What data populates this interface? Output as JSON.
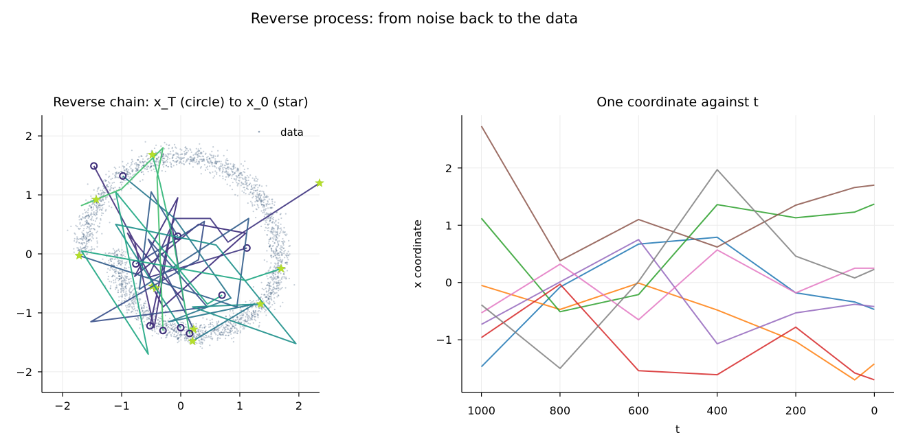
{
  "figure": {
    "suptitle": "Reverse process: from noise back to the data"
  },
  "chart_data": [
    {
      "type": "scatter",
      "title": "Reverse chain: x_T (circle) to x_0 (star)",
      "xlabel": "",
      "ylabel": "",
      "xlim": [
        -2.35,
        2.35
      ],
      "ylim": [
        -2.35,
        2.35
      ],
      "xticks": [
        -2,
        -1,
        0,
        1,
        2
      ],
      "yticks": [
        -2,
        -1,
        0,
        1,
        2
      ],
      "grid": true,
      "legend": {
        "placement": "top-right",
        "entries": [
          "data"
        ]
      },
      "data_cloud": {
        "name": "data",
        "shape": "two-moons",
        "color": "#2c4a6e",
        "upper_moon": {
          "center": [
            0,
            0
          ],
          "radius": 1.65,
          "from_deg": 0,
          "to_deg": 180
        },
        "lower_moon": {
          "center": [
            0.3,
            0.05
          ],
          "radius": 1.4,
          "from_deg": 180,
          "to_deg": 360
        }
      },
      "chains": [
        {
          "color": "#3e2d7c",
          "points": [
            [
              -0.52,
              -1.22
            ],
            [
              -0.05,
              0.95
            ],
            [
              -0.78,
              -0.38
            ],
            [
              0.3,
              0.5
            ],
            [
              1.1,
              0.35
            ],
            [
              -0.3,
              -0.9
            ],
            [
              -0.48,
              -0.55
            ]
          ]
        },
        {
          "color": "#46337e",
          "points": [
            [
              -1.47,
              1.49
            ],
            [
              -0.78,
              0.2
            ],
            [
              -0.45,
              -1.25
            ],
            [
              -0.15,
              0.5
            ],
            [
              0.05,
              -0.8
            ],
            [
              -0.9,
              0.35
            ],
            [
              -0.42,
              -0.58
            ]
          ]
        },
        {
          "color": "#443983",
          "points": [
            [
              1.12,
              0.1
            ],
            [
              -0.55,
              -0.4
            ],
            [
              -0.1,
              0.6
            ],
            [
              0.5,
              0.6
            ],
            [
              0.8,
              0.2
            ],
            [
              2.35,
              1.2
            ]
          ]
        },
        {
          "color": "#3b518b",
          "points": [
            [
              -0.76,
              -0.17
            ],
            [
              0.4,
              0.55
            ],
            [
              0.3,
              -0.1
            ],
            [
              -1.52,
              -1.15
            ],
            [
              0.45,
              -0.9
            ],
            [
              -0.55,
              0.25
            ],
            [
              0.22,
              -1.28
            ]
          ]
        },
        {
          "color": "#355f8d",
          "points": [
            [
              -0.05,
              0.3
            ],
            [
              -0.5,
              1.05
            ],
            [
              -0.7,
              -0.6
            ],
            [
              1.15,
              0.6
            ],
            [
              0.95,
              -0.9
            ],
            [
              -1.5,
              -0.1
            ],
            [
              -1.72,
              -0.03
            ]
          ]
        },
        {
          "color": "#2a788e",
          "points": [
            [
              -0.98,
              1.32
            ],
            [
              -0.1,
              0.6
            ],
            [
              0.85,
              -0.75
            ],
            [
              -0.2,
              -1.15
            ],
            [
              1.25,
              -0.85
            ],
            [
              0.2,
              -1.48
            ]
          ]
        },
        {
          "color": "#21918c",
          "points": [
            [
              0.0,
              -1.25
            ],
            [
              -1.1,
              0.5
            ],
            [
              0.6,
              0.15
            ],
            [
              1.95,
              -1.52
            ],
            [
              0.2,
              -0.9
            ],
            [
              1.35,
              -0.85
            ]
          ]
        },
        {
          "color": "#22a884",
          "points": [
            [
              0.7,
              -0.7
            ],
            [
              0.45,
              -0.85
            ],
            [
              -1.1,
              1.05
            ],
            [
              -0.55,
              -1.7
            ],
            [
              -1.68,
              0.05
            ],
            [
              1.1,
              -0.45
            ],
            [
              1.7,
              -0.25
            ]
          ]
        },
        {
          "color": "#44bf70",
          "points": [
            [
              -0.3,
              -1.3
            ],
            [
              -0.4,
              1.3
            ],
            [
              -0.3,
              1.8
            ],
            [
              -1.0,
              1.1
            ],
            [
              -1.68,
              0.82
            ],
            [
              -1.43,
              0.92
            ]
          ]
        },
        {
          "color": "#33b67a",
          "points": [
            [
              0.15,
              -1.35
            ],
            [
              -0.1,
              0.1
            ],
            [
              -0.35,
              1.2
            ],
            [
              -0.48,
              1.68
            ]
          ]
        }
      ]
    },
    {
      "type": "line",
      "title": "One coordinate against t",
      "xlabel": "t",
      "ylabel": "x coordinate",
      "xlim": [
        1050,
        -50
      ],
      "ylim": [
        -1.92,
        2.92
      ],
      "xticks": [
        1000,
        800,
        600,
        400,
        200,
        0
      ],
      "yticks": [
        -1,
        0,
        1,
        2
      ],
      "grid": true,
      "x": [
        1000,
        800,
        600,
        400,
        200,
        50,
        0
      ],
      "series": [
        {
          "color": "#1f77b4",
          "values": [
            -1.47,
            -0.08,
            0.67,
            0.79,
            -0.18,
            -0.34,
            -0.47
          ]
        },
        {
          "color": "#ff7f0e",
          "values": [
            -0.05,
            -0.47,
            -0.01,
            -0.48,
            -1.03,
            -1.7,
            -1.42
          ]
        },
        {
          "color": "#2ca02c",
          "values": [
            1.12,
            -0.51,
            -0.21,
            1.36,
            1.13,
            1.23,
            1.37
          ]
        },
        {
          "color": "#d62728",
          "values": [
            -0.96,
            -0.03,
            -1.54,
            -1.61,
            -0.78,
            -1.58,
            -1.7
          ]
        },
        {
          "color": "#9467bd",
          "values": [
            -0.73,
            0.01,
            0.75,
            -1.07,
            -0.53,
            -0.38,
            -0.42
          ]
        },
        {
          "color": "#8c564b",
          "values": [
            2.73,
            0.38,
            1.1,
            0.62,
            1.35,
            1.66,
            1.7
          ]
        },
        {
          "color": "#e377c2",
          "values": [
            -0.53,
            0.32,
            -0.65,
            0.57,
            -0.18,
            0.25,
            0.25
          ]
        },
        {
          "color": "#7f7f7f",
          "values": [
            -0.39,
            -1.5,
            0.02,
            1.97,
            0.46,
            0.08,
            0.23
          ]
        }
      ]
    }
  ]
}
